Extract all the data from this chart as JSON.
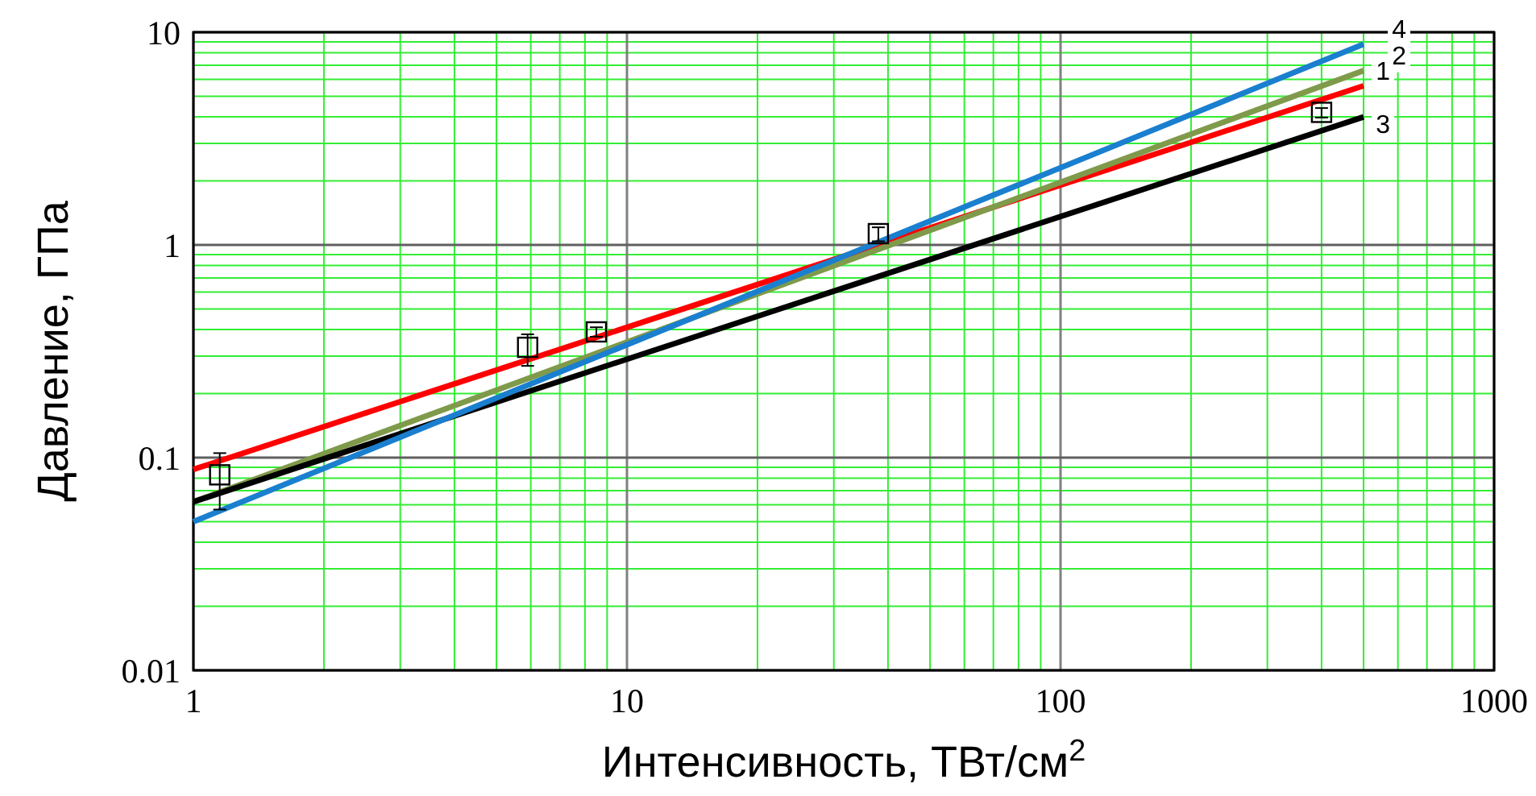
{
  "chart_data": {
    "type": "line",
    "xlabel": "Интенсивность, ТВт/см$^{2}$",
    "ylabel": "Давление, ГПа",
    "log": "xy",
    "grid": true,
    "xlim": [
      1,
      1000
    ],
    "ylim": [
      0.01,
      10
    ],
    "xticks": [
      1,
      {
        "value": 2,
        "label": null
      },
      {
        "value": 3,
        "label": null
      },
      {
        "value": 4,
        "label": null
      },
      {
        "value": 5,
        "label": null
      },
      {
        "value": 6,
        "label": null
      },
      {
        "value": 7,
        "label": null
      },
      {
        "value": 8,
        "label": null
      },
      {
        "value": 9,
        "label": null
      },
      10,
      {
        "value": 20,
        "label": null
      },
      {
        "value": 30,
        "label": null
      },
      {
        "value": 40,
        "label": null
      },
      {
        "value": 50,
        "label": null
      },
      {
        "value": 60,
        "label": null
      },
      {
        "value": 70,
        "label": null
      },
      {
        "value": 80,
        "label": null
      },
      {
        "value": 90,
        "label": null
      },
      100,
      {
        "value": 200,
        "label": null
      },
      {
        "value": 300,
        "label": null
      },
      {
        "value": 400,
        "label": null
      },
      {
        "value": 500,
        "label": null
      },
      {
        "value": 600,
        "label": null
      },
      {
        "value": 700,
        "label": null
      },
      {
        "value": 800,
        "label": null
      },
      {
        "value": 900,
        "label": null
      },
      1000
    ],
    "yticks": [
      0.01,
      {
        "value": 0.02,
        "label": null
      },
      {
        "value": 0.03,
        "label": null
      },
      {
        "value": 0.04,
        "label": null
      },
      {
        "value": 0.05,
        "label": null
      },
      {
        "value": 0.06,
        "label": null
      },
      {
        "value": 0.07,
        "label": null
      },
      {
        "value": 0.08,
        "label": null
      },
      {
        "value": 0.09,
        "label": null
      },
      0.1,
      {
        "value": 0.2,
        "label": null
      },
      {
        "value": 0.3,
        "label": null
      },
      {
        "value": 0.4,
        "label": null
      },
      {
        "value": 0.5,
        "label": null
      },
      {
        "value": 0.6,
        "label": null
      },
      {
        "value": 0.7,
        "label": null
      },
      {
        "value": 0.8,
        "label": null
      },
      {
        "value": 0.9,
        "label": null
      },
      1,
      {
        "value": 2,
        "label": null
      },
      {
        "value": 3,
        "label": null
      },
      {
        "value": 4,
        "label": null
      },
      {
        "value": 5,
        "label": null
      },
      {
        "value": 6,
        "label": null
      },
      {
        "value": 7,
        "label": null
      },
      {
        "value": 8,
        "label": null
      },
      {
        "value": 9,
        "label": null
      },
      10
    ],
    "line_style": "solid",
    "series": [
      {
        "name": "1",
        "color": "#ff0000",
        "x": [
          1,
          500
        ],
        "values": [
          0.088,
          5.6
        ]
      },
      {
        "name": "2",
        "color": "#7f9a4a",
        "x": [
          1,
          500
        ],
        "values": [
          0.062,
          6.6
        ]
      },
      {
        "name": "3",
        "color": "#000000",
        "x": [
          1,
          500
        ],
        "values": [
          0.062,
          4.0
        ]
      },
      {
        "name": "4",
        "color": "#1a7fcf",
        "x": [
          1,
          500
        ],
        "values": [
          0.05,
          8.8
        ]
      },
      {
        "type": "scatter",
        "marker": "square",
        "color": "#000000",
        "x": [
          1.15,
          5.9,
          8.5,
          38,
          400
        ],
        "values": [
          0.083,
          0.33,
          0.39,
          1.13,
          4.2
        ],
        "errors": [
          [
            0.057,
            0.105
          ],
          [
            0.27,
            0.38
          ],
          [
            0.37,
            0.41
          ],
          [
            1.04,
            1.21
          ],
          [
            3.97,
            4.4
          ]
        ]
      }
    ]
  }
}
